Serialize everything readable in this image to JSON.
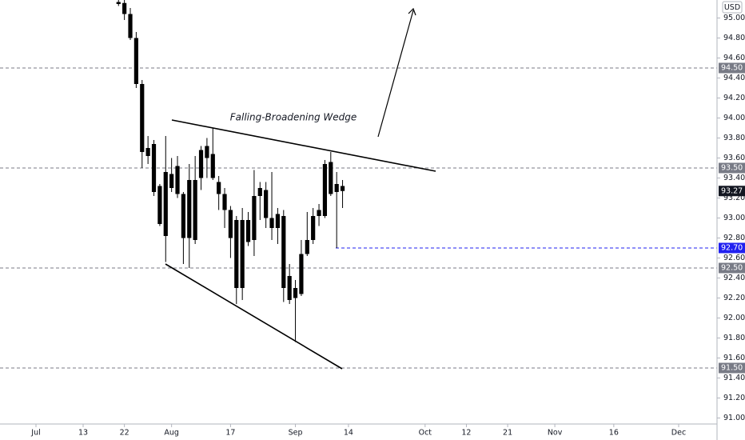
{
  "chart_data": {
    "type": "candlestick",
    "currency": "USD",
    "annotation": "Falling-Broadening Wedge",
    "color": "#000000",
    "categories": [
      null,
      null,
      null,
      null,
      null,
      null,
      "Jul",
      null,
      null,
      null,
      null,
      null,
      null,
      null,
      "13",
      null,
      null,
      null,
      null,
      null,
      null,
      "22",
      null,
      null,
      null,
      null,
      null,
      null,
      null,
      "Aug",
      null,
      null,
      null,
      null,
      null,
      null,
      null,
      null,
      null,
      "17",
      null,
      null,
      null,
      null,
      null,
      null,
      null,
      null,
      null,
      null,
      "Sep",
      null,
      null,
      null,
      null,
      null,
      null,
      null,
      null,
      "14",
      null,
      null,
      null,
      null,
      null,
      null,
      null,
      null,
      null,
      null,
      null,
      null,
      "Oct",
      null,
      null,
      null,
      null,
      null,
      null,
      "12",
      null,
      null,
      null,
      null,
      null,
      null,
      "21",
      null,
      null,
      null,
      null,
      null,
      null,
      null,
      "Nov",
      null,
      null,
      null,
      null,
      null,
      null,
      null,
      null,
      null,
      "16",
      null,
      null,
      null,
      null,
      null,
      null,
      null,
      null,
      null,
      null,
      "Dec",
      null,
      null,
      null,
      null,
      null,
      null
    ],
    "open": [
      null,
      null,
      null,
      null,
      null,
      null,
      null,
      null,
      null,
      null,
      null,
      null,
      null,
      null,
      null,
      null,
      null,
      null,
      null,
      null,
      95.16,
      95.15,
      95.04,
      94.8,
      94.34,
      93.62,
      93.74,
      93.32,
      92.82,
      93.44,
      93.52,
      93.24,
      92.8,
      93.38,
      93.4,
      93.72,
      93.64,
      93.36,
      93.24,
      93.08,
      92.98,
      92.3,
      92.98,
      92.78,
      93.22,
      93.28,
      93.0,
      92.9,
      93.02,
      92.42,
      92.3,
      92.24,
      92.64,
      92.78,
      93.02,
      93.02,
      93.56,
      93.34,
      93.32,
      null,
      null,
      null,
      null,
      null,
      null,
      null,
      null,
      null,
      null,
      null,
      null,
      null,
      null,
      null,
      null,
      null,
      null,
      null,
      null,
      null,
      null,
      null,
      null,
      null,
      null,
      null,
      null,
      null,
      null,
      null,
      null,
      null,
      null,
      null,
      null,
      null,
      null,
      null,
      null,
      null,
      null,
      null,
      null,
      null,
      null,
      null,
      null,
      null,
      null,
      null,
      null,
      null,
      null,
      null,
      null,
      null,
      null,
      null,
      null,
      null,
      null,
      null
    ],
    "high": [
      null,
      null,
      null,
      null,
      null,
      null,
      null,
      null,
      null,
      null,
      null,
      null,
      null,
      null,
      null,
      null,
      null,
      null,
      null,
      null,
      95.2,
      95.2,
      95.1,
      94.86,
      94.38,
      93.82,
      93.78,
      93.34,
      93.82,
      93.6,
      93.62,
      93.26,
      93.54,
      93.62,
      93.72,
      93.8,
      93.9,
      93.42,
      93.3,
      93.12,
      93.02,
      93.1,
      93.06,
      93.48,
      93.36,
      93.36,
      93.46,
      93.1,
      93.08,
      92.54,
      92.38,
      92.78,
      93.06,
      93.1,
      93.14,
      93.58,
      93.66,
      93.46,
      93.38,
      null,
      null,
      null,
      null,
      null,
      null,
      null,
      null,
      null,
      null,
      null,
      null,
      null,
      null,
      null,
      null,
      null,
      null,
      null,
      null,
      null,
      null,
      null,
      null,
      null,
      null,
      null,
      null,
      null,
      null,
      null,
      null,
      null,
      null,
      null,
      null,
      null,
      null,
      null,
      null,
      null,
      null,
      null,
      null,
      null,
      null,
      null,
      null,
      null,
      null,
      null,
      null,
      null,
      null,
      null,
      null,
      null,
      null,
      null,
      null,
      null,
      null,
      null
    ],
    "low": [
      null,
      null,
      null,
      null,
      null,
      null,
      null,
      null,
      null,
      null,
      null,
      null,
      null,
      null,
      null,
      null,
      null,
      null,
      null,
      null,
      95.12,
      94.98,
      94.78,
      94.3,
      93.5,
      93.54,
      93.22,
      92.92,
      92.56,
      93.26,
      93.2,
      92.54,
      92.5,
      92.74,
      93.28,
      93.4,
      93.38,
      93.08,
      92.9,
      92.6,
      92.14,
      92.18,
      92.72,
      92.62,
      92.98,
      92.9,
      92.78,
      92.74,
      92.16,
      92.14,
      91.76,
      92.22,
      92.62,
      92.74,
      92.92,
      93.0,
      93.22,
      92.7,
      93.1,
      null,
      null,
      null,
      null,
      null,
      null,
      null,
      null,
      null,
      null,
      null,
      null,
      null,
      null,
      null,
      null,
      null,
      null,
      null,
      null,
      null,
      null,
      null,
      null,
      null,
      null,
      null,
      null,
      null,
      null,
      null,
      null,
      null,
      null,
      null,
      null,
      null,
      null,
      null,
      null,
      null,
      null,
      null,
      null,
      null,
      null,
      null,
      null,
      null,
      null,
      null,
      null,
      null,
      null,
      null,
      null,
      null,
      null,
      null,
      null,
      null,
      null,
      null
    ],
    "close": [
      null,
      null,
      null,
      null,
      null,
      null,
      null,
      null,
      null,
      null,
      null,
      null,
      null,
      null,
      null,
      null,
      null,
      null,
      null,
      null,
      95.14,
      95.04,
      94.8,
      94.34,
      93.66,
      93.7,
      93.26,
      92.94,
      93.46,
      93.3,
      93.24,
      92.8,
      93.38,
      92.78,
      93.68,
      93.6,
      93.4,
      93.24,
      93.08,
      92.8,
      92.3,
      92.98,
      92.76,
      93.22,
      93.3,
      93.0,
      92.9,
      93.04,
      92.3,
      92.18,
      92.2,
      92.64,
      92.78,
      93.02,
      93.08,
      93.54,
      93.24,
      93.26,
      93.27,
      null,
      null,
      null,
      null,
      null,
      null,
      null,
      null,
      null,
      null,
      null,
      null,
      null,
      null,
      null,
      null,
      null,
      null,
      null,
      null,
      null,
      null,
      null,
      null,
      null,
      null,
      null,
      null,
      null,
      null,
      null,
      null,
      null,
      null,
      null,
      null,
      null,
      null,
      null,
      null,
      null,
      null,
      null,
      null,
      null,
      null,
      null,
      null,
      null,
      null,
      null,
      null,
      null,
      null,
      null,
      null,
      null,
      null,
      null,
      null,
      null,
      null,
      null
    ],
    "ylim": [
      90.94,
      95.18
    ],
    "yticks": [
      {
        "value": 95.0,
        "label": "95.00"
      },
      {
        "value": 94.8,
        "label": "94.80"
      },
      {
        "value": 94.6,
        "label": "94.60"
      },
      {
        "value": 94.4,
        "label": "94.40"
      },
      {
        "value": 94.2,
        "label": "94.20"
      },
      {
        "value": 94.0,
        "label": "94.00"
      },
      {
        "value": 93.8,
        "label": "93.80"
      },
      {
        "value": 93.6,
        "label": "93.60"
      },
      {
        "value": 93.4,
        "label": "93.40"
      },
      {
        "value": 93.2,
        "label": "93.20"
      },
      {
        "value": 93.0,
        "label": "93.00"
      },
      {
        "value": 92.8,
        "label": "92.80"
      },
      {
        "value": 92.6,
        "label": "92.60"
      },
      {
        "value": 92.4,
        "label": "92.40"
      },
      {
        "value": 92.2,
        "label": "92.20"
      },
      {
        "value": 92.0,
        "label": "92.00"
      },
      {
        "value": 91.8,
        "label": "91.80"
      },
      {
        "value": 91.6,
        "label": "91.60"
      },
      {
        "value": 91.4,
        "label": "91.40"
      },
      {
        "value": 91.2,
        "label": "91.20"
      },
      {
        "value": 91.0,
        "label": "91.00"
      }
    ],
    "price_lines": [
      {
        "value": 94.5,
        "label": "94.50",
        "color": "#787b86"
      },
      {
        "value": 93.5,
        "label": "93.50",
        "color": "#787b86"
      },
      {
        "value": 92.5,
        "label": "92.50",
        "color": "#787b86"
      },
      {
        "value": 91.5,
        "label": "91.50",
        "color": "#787b86"
      }
    ],
    "alert_line": {
      "value": 92.7,
      "label": "92.70",
      "color": "#2121f0"
    },
    "last_price": {
      "value": 93.27,
      "label": "93.27",
      "color": "#131722"
    }
  }
}
